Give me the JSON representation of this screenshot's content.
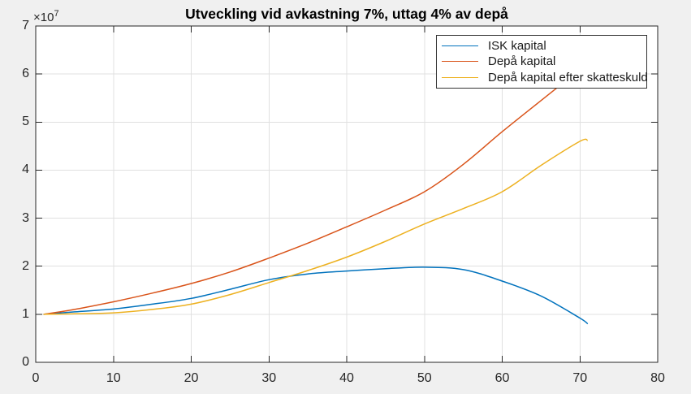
{
  "chart_data": {
    "type": "line",
    "title": "Utveckling vid avkastning 7%, uttag 4% av depå",
    "y_scale": {
      "mantissa": "×10",
      "exponent": "7"
    },
    "xlabel": "",
    "ylabel": "",
    "xlim": [
      0,
      80
    ],
    "ylim": [
      0,
      7
    ],
    "x_ticks": [
      0,
      10,
      20,
      30,
      40,
      50,
      60,
      70,
      80
    ],
    "y_ticks": [
      0,
      1,
      2,
      3,
      4,
      5,
      6,
      7
    ],
    "grid": true,
    "legend_position": "top-right",
    "x": [
      1,
      5,
      10,
      15,
      20,
      25,
      30,
      35,
      40,
      45,
      50,
      55,
      60,
      65,
      70,
      71
    ],
    "series": [
      {
        "name": "ISK kapital",
        "color": "#0072BD",
        "values": [
          1.0,
          1.05,
          1.11,
          1.21,
          1.33,
          1.52,
          1.72,
          1.84,
          1.9,
          1.95,
          1.98,
          1.93,
          1.69,
          1.38,
          0.92,
          0.8
        ]
      },
      {
        "name": "Depå kapital",
        "color": "#D95319",
        "values": [
          1.0,
          1.1,
          1.26,
          1.44,
          1.64,
          1.88,
          2.17,
          2.48,
          2.82,
          3.17,
          3.55,
          4.12,
          4.8,
          5.45,
          6.1,
          6.27
        ]
      },
      {
        "name": "Depå kapital efter skatteskuld",
        "color": "#EDB120",
        "values": [
          1.0,
          1.01,
          1.03,
          1.1,
          1.21,
          1.41,
          1.66,
          1.91,
          2.19,
          2.52,
          2.88,
          3.2,
          3.55,
          4.1,
          4.6,
          4.62
        ]
      }
    ],
    "colors": {
      "figure_bg": "#f0f0f0",
      "plot_bg": "#ffffff",
      "axis": "#262626",
      "grid": "#e0e0e0",
      "tick_text": "#262626",
      "title_text": "#000000",
      "legend_bg": "#ffffff",
      "legend_border": "#333333"
    }
  }
}
